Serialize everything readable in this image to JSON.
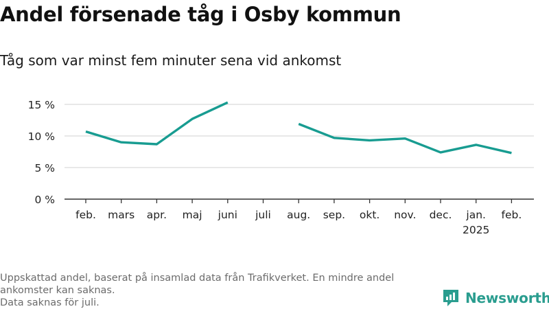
{
  "header": {
    "title": "Andel försenade tåg i Osby kommun",
    "subtitle": "Tåg som var minst fem minuter sena vid ankomst"
  },
  "footer": {
    "note_line1": "Uppskattad andel, baserat på insamlad data från Trafikverket. En mindre andel ankomster kan saknas.",
    "note_line2": "Data saknas för juli.",
    "brand_name": "Newsworthy"
  },
  "colors": {
    "line": "#189c91",
    "grid": "#d9d9d9",
    "axis": "#333333",
    "brand": "#2a9d8f"
  },
  "chart_data": {
    "type": "line",
    "title": "Andel försenade tåg i Osby kommun",
    "subtitle": "Tåg som var minst fem minuter sena vid ankomst",
    "categories": [
      "feb.",
      "mars",
      "apr.",
      "maj",
      "juni",
      "juli",
      "aug.",
      "sep.",
      "okt.",
      "nov.",
      "dec.",
      "jan.",
      "feb."
    ],
    "year_labels": [
      {
        "index": 11,
        "label": "2025"
      }
    ],
    "series": [
      {
        "values": [
          10.7,
          9.0,
          8.7,
          12.7,
          15.3,
          null,
          11.9,
          9.7,
          9.3,
          9.6,
          7.4,
          8.6,
          7.3
        ]
      }
    ],
    "y_ticks": [
      0,
      5,
      10,
      15
    ],
    "y_tick_labels": [
      "0 %",
      "5 %",
      "10 %",
      "15 %"
    ],
    "ylim": [
      0,
      15
    ],
    "xlabel": "",
    "ylabel": "",
    "grid": true,
    "missing_data_note": "Data saknas för juli."
  }
}
